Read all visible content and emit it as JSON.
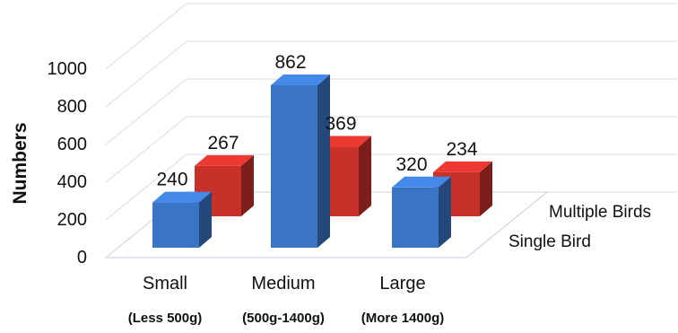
{
  "chart_data": {
    "type": "bar",
    "categories": [
      "Small",
      "Medium",
      "Large"
    ],
    "category_sublabels": [
      "(Less 500g)",
      "(500g-1400g)",
      "(More 1400g)"
    ],
    "series": [
      {
        "name": "Single Bird",
        "values": [
          240,
          862,
          320
        ]
      },
      {
        "name": "Multiple Birds",
        "values": [
          267,
          369,
          234
        ]
      }
    ],
    "ylabel": "Numbers",
    "ylim": [
      0,
      1000
    ],
    "yticks": [
      "0",
      "200",
      "400",
      "600",
      "800",
      "1000"
    ],
    "grid": true,
    "colors": {
      "Single Bird": "#3a74c4",
      "Multiple Birds": "#c8302a"
    }
  }
}
